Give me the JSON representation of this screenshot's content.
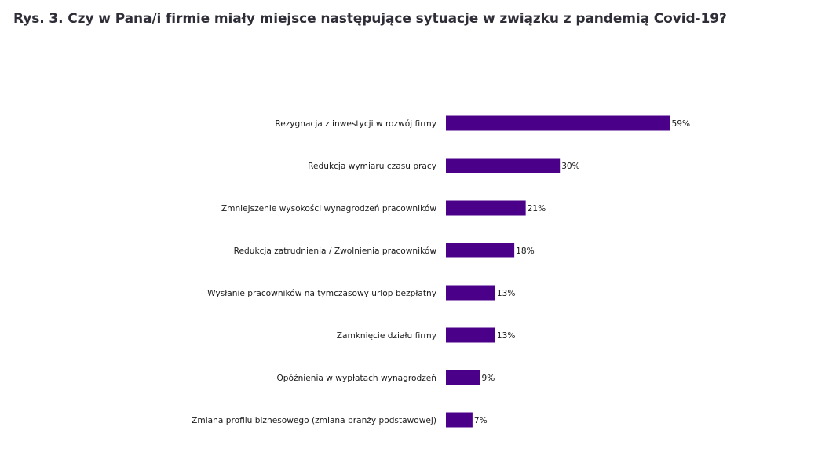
{
  "page": {
    "title": "Rys. 3. Czy w Pana/i firmie miały miejsce następujące sytuacje w związku z pandemią Covid-19?"
  },
  "chart_data": {
    "type": "bar",
    "orientation": "horizontal",
    "categories": [
      "Rezygnacja z inwestycji w rozwój firmy",
      "Redukcja wymiaru czasu pracy",
      "Zmniejszenie wysokości wynagrodzeń pracowników",
      "Redukcja zatrudnienia / Zwolnienia pracowników",
      "Wysłanie pracowników na tymczasowy urlop bezpłatny",
      "Zamknięcie działu firmy",
      "Opóźnienia w wypłatach wynagrodzeń",
      "Zmiana profilu biznesowego (zmiana branży podstawowej)"
    ],
    "values": [
      59,
      30,
      21,
      18,
      13,
      13,
      9,
      7
    ],
    "value_labels": [
      "59%",
      "30%",
      "21%",
      "18%",
      "13%",
      "13%",
      "9%",
      "7%"
    ],
    "xlim": [
      0,
      60
    ],
    "grid": false,
    "legend": "none",
    "bar_color": "#4b0089"
  }
}
